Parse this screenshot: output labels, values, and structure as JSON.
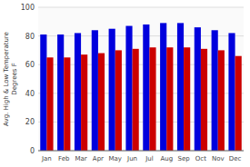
{
  "chart_data": {
    "type": "bar",
    "ylabel": "Avg. High & Low Temperature\nDegrees F",
    "categories": [
      "Jan",
      "Feb",
      "Mar",
      "Apr",
      "May",
      "Jun",
      "Jul",
      "Aug",
      "Sep",
      "Oct",
      "Nov",
      "Dec"
    ],
    "series": [
      {
        "color": "#0000dd",
        "values": [
          81,
          81,
          82,
          84,
          85,
          87,
          88,
          89,
          89,
          86,
          84,
          82
        ]
      },
      {
        "color": "#cc0000",
        "values": [
          65,
          65,
          67,
          68,
          70,
          71,
          72,
          72,
          72,
          71,
          70,
          66
        ]
      }
    ],
    "ylim": [
      0,
      100
    ],
    "yticks": [
      0,
      20,
      40,
      60,
      80,
      100
    ],
    "grid": true
  }
}
